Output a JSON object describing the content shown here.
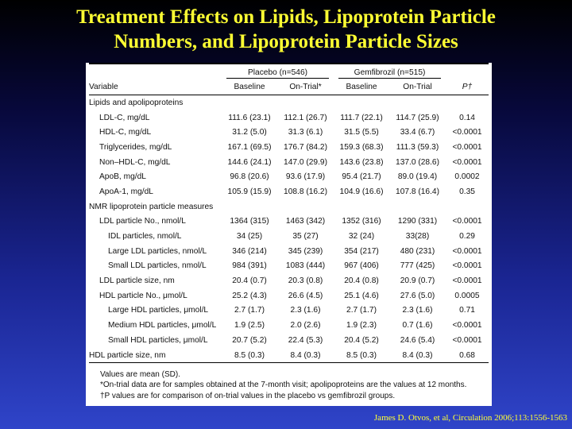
{
  "slide": {
    "title_line1": "Treatment Effects on Lipids, Lipoprotein Particle",
    "title_line2": "Numbers, and Lipoprotein Particle Sizes",
    "citation": "James D. Otvos, et al, Circulation  2006;113:1556-1563"
  },
  "table": {
    "group_placebo": "Placebo (n=546)",
    "group_gemfibrozil": "Gemfibrozil (n=515)",
    "headers": {
      "variable": "Variable",
      "placebo_baseline": "Baseline",
      "placebo_ontrial": "On-Trial*",
      "gem_baseline": "Baseline",
      "gem_ontrial": "On-Trial",
      "p": "P†"
    },
    "rows": [
      {
        "label": "Lipids and apolipoproteins"
      },
      {
        "label": "LDL-C, mg/dL",
        "pb": "111.6 (23.1)",
        "po": "112.1 (26.7)",
        "gb": "111.7 (22.1)",
        "go": "114.7 (25.9)",
        "p": "0.14"
      },
      {
        "label": "HDL-C, mg/dL",
        "pb": "31.2 (5.0)",
        "po": "31.3 (6.1)",
        "gb": "31.5 (5.5)",
        "go": "33.4 (6.7)",
        "p": "<0.0001"
      },
      {
        "label": "Triglycerides, mg/dL",
        "pb": "167.1 (69.5)",
        "po": "176.7 (84.2)",
        "gb": "159.3 (68.3)",
        "go": "111.3 (59.3)",
        "p": "<0.0001"
      },
      {
        "label": "Non–HDL-C, mg/dL",
        "pb": "144.6 (24.1)",
        "po": "147.0 (29.9)",
        "gb": "143.6 (23.8)",
        "go": "137.0 (28.6)",
        "p": "<0.0001"
      },
      {
        "label": "ApoB, mg/dL",
        "pb": "96.8 (20.6)",
        "po": "93.6 (17.9)",
        "gb": "95.4 (21.7)",
        "go": "89.0 (19.4)",
        "p": "0.0002"
      },
      {
        "label": "ApoA-1, mg/dL",
        "pb": "105.9 (15.9)",
        "po": "108.8 (16.2)",
        "gb": "104.9 (16.6)",
        "go": "107.8 (16.4)",
        "p": "0.35"
      },
      {
        "label": "NMR lipoprotein particle measures"
      },
      {
        "label": "LDL particle No., nmol/L",
        "pb": "1364 (315)",
        "po": "1463 (342)",
        "gb": "1352 (316)",
        "go": "1290 (331)",
        "p": "<0.0001"
      },
      {
        "label": "IDL particles, nmol/L",
        "pb": "34 (25)",
        "po": "35 (27)",
        "gb": "32 (24)",
        "go": "33(28)",
        "p": "0.29"
      },
      {
        "label": "Large LDL particles, nmol/L",
        "pb": "346 (214)",
        "po": "345 (239)",
        "gb": "354 (217)",
        "go": "480 (231)",
        "p": "<0.0001"
      },
      {
        "label": "Small LDL particles, nmol/L",
        "pb": "984 (391)",
        "po": "1083 (444)",
        "gb": "967 (406)",
        "go": "777 (425)",
        "p": "<0.0001"
      },
      {
        "label": "LDL particle size, nm",
        "pb": "20.4 (0.7)",
        "po": "20.3 (0.8)",
        "gb": "20.4 (0.8)",
        "go": "20.9 (0.7)",
        "p": "<0.0001"
      },
      {
        "label": "HDL particle No., μmol/L",
        "pb": "25.2 (4.3)",
        "po": "26.6 (4.5)",
        "gb": "25.1 (4.6)",
        "go": "27.6 (5.0)",
        "p": "0.0005"
      },
      {
        "label": "Large HDL particles, μmol/L",
        "pb": "2.7 (1.7)",
        "po": "2.3 (1.6)",
        "gb": "2.7 (1.7)",
        "go": "2.3 (1.6)",
        "p": "0.71"
      },
      {
        "label": "Medium HDL particles, μmol/L",
        "pb": "1.9 (2.5)",
        "po": "2.0 (2.6)",
        "gb": "1.9 (2.3)",
        "go": "0.7 (1.6)",
        "p": "<0.0001"
      },
      {
        "label": "Small HDL particles, μmol/L",
        "pb": "20.7 (5.2)",
        "po": "22.4 (5.3)",
        "gb": "20.4 (5.2)",
        "go": "24.6 (5.4)",
        "p": "<0.0001"
      },
      {
        "label": "HDL particle size, nm",
        "pb": "8.5 (0.3)",
        "po": "8.4 (0.3)",
        "gb": "8.5 (0.3)",
        "go": "8.4 (0.3)",
        "p": "0.68"
      }
    ],
    "notes": [
      "Values are mean (SD).",
      "*On-trial data are for samples obtained at the 7-month visit; apolipoproteins are the values at 12 months.",
      "†P values are for comparison of on-trial values in the placebo vs gemfibrozil groups."
    ]
  }
}
